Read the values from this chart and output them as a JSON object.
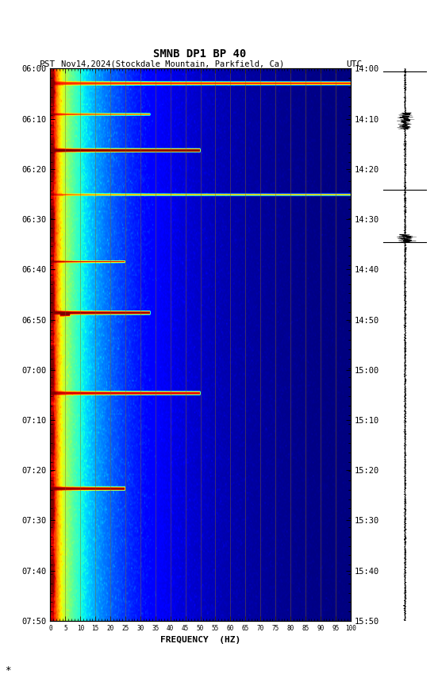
{
  "title_line1": "SMNB DP1 BP 40",
  "title_line2_left": "PST",
  "title_line2_mid": "Nov14,2024(Stockdale Mountain, Parkfield, Ca)",
  "title_line2_right": "UTC",
  "xlabel": "FREQUENCY  (HZ)",
  "freq_min": 0,
  "freq_max": 100,
  "time_ticks_pst": [
    "06:00",
    "06:10",
    "06:20",
    "06:30",
    "06:40",
    "06:50",
    "07:00",
    "07:10",
    "07:20",
    "07:30",
    "07:40",
    "07:50"
  ],
  "time_ticks_utc": [
    "14:00",
    "14:10",
    "14:20",
    "14:30",
    "14:40",
    "14:50",
    "15:00",
    "15:10",
    "15:20",
    "15:30",
    "15:40",
    "15:50"
  ],
  "freq_ticks": [
    0,
    5,
    10,
    15,
    20,
    25,
    30,
    35,
    40,
    45,
    50,
    55,
    60,
    65,
    70,
    75,
    80,
    85,
    90,
    95,
    100
  ],
  "vertical_lines_freq": [
    5,
    10,
    15,
    20,
    25,
    30,
    35,
    40,
    45,
    50,
    55,
    60,
    65,
    70,
    75,
    80,
    85,
    90,
    95
  ],
  "bg_color": "white",
  "colormap": "jet",
  "n_freq": 300,
  "n_time": 330,
  "seed": 42,
  "title_fontsize": 10,
  "label_fontsize": 8,
  "tick_fontsize": 7.5,
  "vline_color": "#8B6914",
  "vline_alpha": 0.6,
  "vline_lw": 0.5
}
